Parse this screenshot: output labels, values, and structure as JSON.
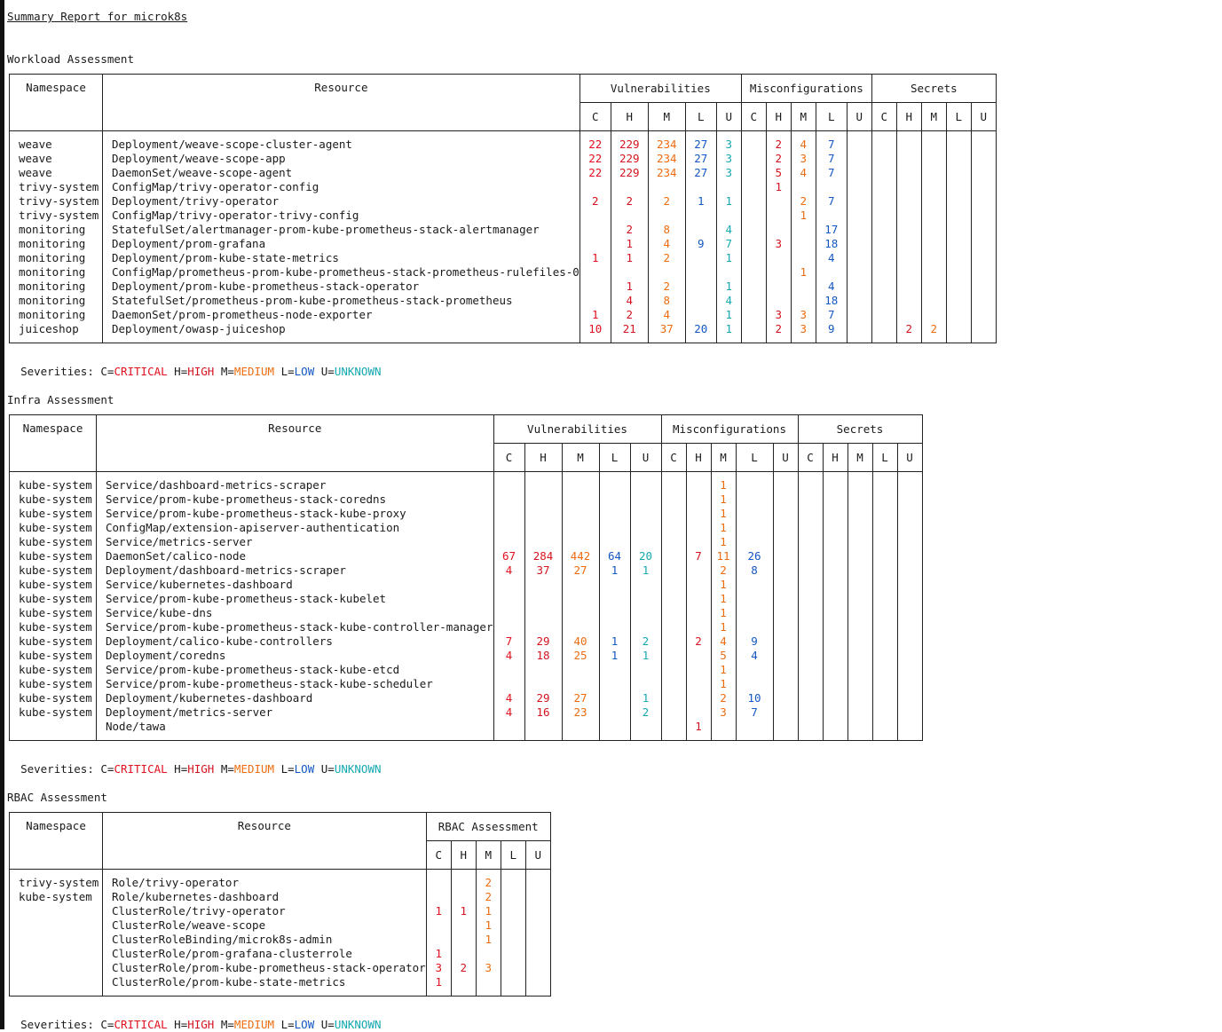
{
  "report_title": "Summary Report for microk8s",
  "colors": {
    "critical": "#e0101c",
    "high": "#d4141e",
    "medium": "#ee6c10",
    "low": "#1357c4",
    "unknown": "#16a8b2"
  },
  "legend": {
    "prefix": "Severities: ",
    "c": "C=",
    "critical": "CRITICAL",
    "h": " H=",
    "high": "HIGH",
    "m": " M=",
    "medium": "MEDIUM",
    "l": " L=",
    "low": "LOW",
    "u": " U=",
    "unknown": "UNKNOWN"
  },
  "columns": {
    "ns": "Namespace",
    "res": "Resource",
    "vuln": "Vulnerabilities",
    "misc": "Misconfigurations",
    "sec": "Secrets",
    "sev": [
      "C",
      "H",
      "M",
      "L",
      "U"
    ]
  },
  "workload": {
    "heading": "Workload Assessment",
    "rows": [
      {
        "ns": "weave",
        "res": "Deployment/weave-scope-cluster-agent",
        "v": [
          "22",
          "229",
          "234",
          "27",
          "3"
        ],
        "m": [
          "",
          "2",
          "4",
          "7",
          ""
        ],
        "s": [
          "",
          "",
          "",
          "",
          ""
        ]
      },
      {
        "ns": "weave",
        "res": "Deployment/weave-scope-app",
        "v": [
          "22",
          "229",
          "234",
          "27",
          "3"
        ],
        "m": [
          "",
          "2",
          "3",
          "7",
          ""
        ],
        "s": [
          "",
          "",
          "",
          "",
          ""
        ]
      },
      {
        "ns": "weave",
        "res": "DaemonSet/weave-scope-agent",
        "v": [
          "22",
          "229",
          "234",
          "27",
          "3"
        ],
        "m": [
          "",
          "5",
          "4",
          "7",
          ""
        ],
        "s": [
          "",
          "",
          "",
          "",
          ""
        ]
      },
      {
        "ns": "trivy-system",
        "res": "ConfigMap/trivy-operator-config",
        "v": [
          "",
          "",
          "",
          "",
          ""
        ],
        "m": [
          "",
          "1",
          "",
          "",
          ""
        ],
        "s": [
          "",
          "",
          "",
          "",
          ""
        ]
      },
      {
        "ns": "trivy-system",
        "res": "Deployment/trivy-operator",
        "v": [
          "2",
          "2",
          "2",
          "1",
          "1"
        ],
        "m": [
          "",
          "",
          "2",
          "7",
          ""
        ],
        "s": [
          "",
          "",
          "",
          "",
          ""
        ]
      },
      {
        "ns": "trivy-system",
        "res": "ConfigMap/trivy-operator-trivy-config",
        "v": [
          "",
          "",
          "",
          "",
          ""
        ],
        "m": [
          "",
          "",
          "1",
          "",
          ""
        ],
        "s": [
          "",
          "",
          "",
          "",
          ""
        ]
      },
      {
        "ns": "monitoring",
        "res": "StatefulSet/alertmanager-prom-kube-prometheus-stack-alertmanager",
        "v": [
          "",
          "2",
          "8",
          "",
          "4"
        ],
        "m": [
          "",
          "",
          "",
          "17",
          ""
        ],
        "s": [
          "",
          "",
          "",
          "",
          ""
        ]
      },
      {
        "ns": "monitoring",
        "res": "Deployment/prom-grafana",
        "v": [
          "",
          "1",
          "4",
          "9",
          "7"
        ],
        "m": [
          "",
          "3",
          "",
          "18",
          ""
        ],
        "s": [
          "",
          "",
          "",
          "",
          ""
        ]
      },
      {
        "ns": "monitoring",
        "res": "Deployment/prom-kube-state-metrics",
        "v": [
          "1",
          "1",
          "2",
          "",
          "1"
        ],
        "m": [
          "",
          "",
          "",
          "4",
          ""
        ],
        "s": [
          "",
          "",
          "",
          "",
          ""
        ]
      },
      {
        "ns": "monitoring",
        "res": "ConfigMap/prometheus-prom-kube-prometheus-stack-prometheus-rulefiles-0",
        "v": [
          "",
          "",
          "",
          "",
          ""
        ],
        "m": [
          "",
          "",
          "1",
          "",
          ""
        ],
        "s": [
          "",
          "",
          "",
          "",
          ""
        ]
      },
      {
        "ns": "monitoring",
        "res": "Deployment/prom-kube-prometheus-stack-operator",
        "v": [
          "",
          "1",
          "2",
          "",
          "1"
        ],
        "m": [
          "",
          "",
          "",
          "4",
          ""
        ],
        "s": [
          "",
          "",
          "",
          "",
          ""
        ]
      },
      {
        "ns": "monitoring",
        "res": "StatefulSet/prometheus-prom-kube-prometheus-stack-prometheus",
        "v": [
          "",
          "4",
          "8",
          "",
          "4"
        ],
        "m": [
          "",
          "",
          "",
          "18",
          ""
        ],
        "s": [
          "",
          "",
          "",
          "",
          ""
        ]
      },
      {
        "ns": "monitoring",
        "res": "DaemonSet/prom-prometheus-node-exporter",
        "v": [
          "1",
          "2",
          "4",
          "",
          "1"
        ],
        "m": [
          "",
          "3",
          "3",
          "7",
          ""
        ],
        "s": [
          "",
          "",
          "",
          "",
          ""
        ]
      },
      {
        "ns": "juiceshop",
        "res": "Deployment/owasp-juiceshop",
        "v": [
          "10",
          "21",
          "37",
          "20",
          "1"
        ],
        "m": [
          "",
          "2",
          "3",
          "9",
          ""
        ],
        "s": [
          "",
          "2",
          "2",
          "",
          ""
        ]
      }
    ]
  },
  "infra": {
    "heading": "Infra Assessment",
    "rows": [
      {
        "ns": "kube-system",
        "res": "Service/dashboard-metrics-scraper",
        "v": [
          "",
          "",
          "",
          "",
          ""
        ],
        "m": [
          "",
          "",
          "1",
          "",
          ""
        ],
        "s": [
          "",
          "",
          "",
          "",
          ""
        ]
      },
      {
        "ns": "kube-system",
        "res": "Service/prom-kube-prometheus-stack-coredns",
        "v": [
          "",
          "",
          "",
          "",
          ""
        ],
        "m": [
          "",
          "",
          "1",
          "",
          ""
        ],
        "s": [
          "",
          "",
          "",
          "",
          ""
        ]
      },
      {
        "ns": "kube-system",
        "res": "Service/prom-kube-prometheus-stack-kube-proxy",
        "v": [
          "",
          "",
          "",
          "",
          ""
        ],
        "m": [
          "",
          "",
          "1",
          "",
          ""
        ],
        "s": [
          "",
          "",
          "",
          "",
          ""
        ]
      },
      {
        "ns": "kube-system",
        "res": "ConfigMap/extension-apiserver-authentication",
        "v": [
          "",
          "",
          "",
          "",
          ""
        ],
        "m": [
          "",
          "",
          "1",
          "",
          ""
        ],
        "s": [
          "",
          "",
          "",
          "",
          ""
        ]
      },
      {
        "ns": "kube-system",
        "res": "Service/metrics-server",
        "v": [
          "",
          "",
          "",
          "",
          ""
        ],
        "m": [
          "",
          "",
          "1",
          "",
          ""
        ],
        "s": [
          "",
          "",
          "",
          "",
          ""
        ]
      },
      {
        "ns": "kube-system",
        "res": "DaemonSet/calico-node",
        "v": [
          "67",
          "284",
          "442",
          "64",
          "20"
        ],
        "m": [
          "",
          "7",
          "11",
          "26",
          ""
        ],
        "s": [
          "",
          "",
          "",
          "",
          ""
        ]
      },
      {
        "ns": "kube-system",
        "res": "Deployment/dashboard-metrics-scraper",
        "v": [
          "4",
          "37",
          "27",
          "1",
          "1"
        ],
        "m": [
          "",
          "",
          "2",
          "8",
          ""
        ],
        "s": [
          "",
          "",
          "",
          "",
          ""
        ]
      },
      {
        "ns": "kube-system",
        "res": "Service/kubernetes-dashboard",
        "v": [
          "",
          "",
          "",
          "",
          ""
        ],
        "m": [
          "",
          "",
          "1",
          "",
          ""
        ],
        "s": [
          "",
          "",
          "",
          "",
          ""
        ]
      },
      {
        "ns": "kube-system",
        "res": "Service/prom-kube-prometheus-stack-kubelet",
        "v": [
          "",
          "",
          "",
          "",
          ""
        ],
        "m": [
          "",
          "",
          "1",
          "",
          ""
        ],
        "s": [
          "",
          "",
          "",
          "",
          ""
        ]
      },
      {
        "ns": "kube-system",
        "res": "Service/kube-dns",
        "v": [
          "",
          "",
          "",
          "",
          ""
        ],
        "m": [
          "",
          "",
          "1",
          "",
          ""
        ],
        "s": [
          "",
          "",
          "",
          "",
          ""
        ]
      },
      {
        "ns": "kube-system",
        "res": "Service/prom-kube-prometheus-stack-kube-controller-manager",
        "v": [
          "",
          "",
          "",
          "",
          ""
        ],
        "m": [
          "",
          "",
          "1",
          "",
          ""
        ],
        "s": [
          "",
          "",
          "",
          "",
          ""
        ]
      },
      {
        "ns": "kube-system",
        "res": "Deployment/calico-kube-controllers",
        "v": [
          "7",
          "29",
          "40",
          "1",
          "2"
        ],
        "m": [
          "",
          "2",
          "4",
          "9",
          ""
        ],
        "s": [
          "",
          "",
          "",
          "",
          ""
        ]
      },
      {
        "ns": "kube-system",
        "res": "Deployment/coredns",
        "v": [
          "4",
          "18",
          "25",
          "1",
          "1"
        ],
        "m": [
          "",
          "",
          "5",
          "4",
          ""
        ],
        "s": [
          "",
          "",
          "",
          "",
          ""
        ]
      },
      {
        "ns": "kube-system",
        "res": "Service/prom-kube-prometheus-stack-kube-etcd",
        "v": [
          "",
          "",
          "",
          "",
          ""
        ],
        "m": [
          "",
          "",
          "1",
          "",
          ""
        ],
        "s": [
          "",
          "",
          "",
          "",
          ""
        ]
      },
      {
        "ns": "kube-system",
        "res": "Service/prom-kube-prometheus-stack-kube-scheduler",
        "v": [
          "",
          "",
          "",
          "",
          ""
        ],
        "m": [
          "",
          "",
          "1",
          "",
          ""
        ],
        "s": [
          "",
          "",
          "",
          "",
          ""
        ]
      },
      {
        "ns": "kube-system",
        "res": "Deployment/kubernetes-dashboard",
        "v": [
          "4",
          "29",
          "27",
          "",
          "1"
        ],
        "m": [
          "",
          "",
          "2",
          "10",
          ""
        ],
        "s": [
          "",
          "",
          "",
          "",
          ""
        ]
      },
      {
        "ns": "kube-system",
        "res": "Deployment/metrics-server",
        "v": [
          "4",
          "16",
          "23",
          "",
          "2"
        ],
        "m": [
          "",
          "",
          "3",
          "7",
          ""
        ],
        "s": [
          "",
          "",
          "",
          "",
          ""
        ]
      },
      {
        "ns": "",
        "res": "Node/tawa",
        "v": [
          "",
          "",
          "",
          "",
          ""
        ],
        "m": [
          "",
          "1",
          "",
          "",
          ""
        ],
        "s": [
          "",
          "",
          "",
          "",
          ""
        ]
      }
    ]
  },
  "rbac": {
    "heading": "RBAC Assessment",
    "group": "RBAC Assessment",
    "rows": [
      {
        "ns": "trivy-system",
        "res": "Role/trivy-operator",
        "r": [
          "",
          "",
          "2",
          "",
          ""
        ]
      },
      {
        "ns": "kube-system",
        "res": "Role/kubernetes-dashboard",
        "r": [
          "",
          "",
          "2",
          "",
          ""
        ]
      },
      {
        "ns": "",
        "res": "ClusterRole/trivy-operator",
        "r": [
          "1",
          "1",
          "1",
          "",
          ""
        ]
      },
      {
        "ns": "",
        "res": "ClusterRole/weave-scope",
        "r": [
          "",
          "",
          "1",
          "",
          ""
        ]
      },
      {
        "ns": "",
        "res": "ClusterRoleBinding/microk8s-admin",
        "r": [
          "",
          "",
          "1",
          "",
          ""
        ]
      },
      {
        "ns": "",
        "res": "ClusterRole/prom-grafana-clusterrole",
        "r": [
          "1",
          "",
          "",
          "",
          ""
        ]
      },
      {
        "ns": "",
        "res": "ClusterRole/prom-kube-prometheus-stack-operator",
        "r": [
          "3",
          "2",
          "3",
          "",
          ""
        ]
      },
      {
        "ns": "",
        "res": "ClusterRole/prom-kube-state-metrics",
        "r": [
          "1",
          "",
          "",
          "",
          ""
        ]
      }
    ]
  }
}
